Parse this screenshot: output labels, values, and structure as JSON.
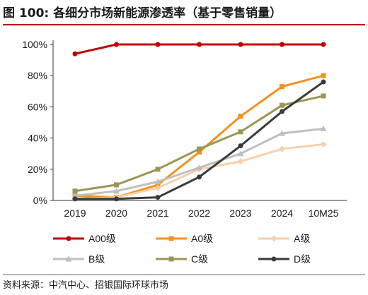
{
  "title": "图 100: 各细分市场新能源渗透率（基于零售销量）",
  "source": "资料来源：中汽中心、招银国际环球市场",
  "chart_data": {
    "type": "line",
    "categories": [
      "2019",
      "2020",
      "2021",
      "2022",
      "2023",
      "2024",
      "10M25"
    ],
    "ylim": [
      0,
      100
    ],
    "yticks": [
      0,
      20,
      40,
      60,
      80,
      100
    ],
    "ytick_labels": [
      "0%",
      "20%",
      "40%",
      "60%",
      "80%",
      "100%"
    ],
    "y_unit": "%",
    "grid": false,
    "legend_position": "bottom",
    "series": [
      {
        "name": "A00级",
        "color": "#c00000",
        "marker": "circle",
        "values": [
          94,
          100,
          100,
          100,
          100,
          100,
          100
        ]
      },
      {
        "name": "A0级",
        "color": "#f7901e",
        "marker": "square",
        "values": [
          3,
          2,
          10,
          31,
          54,
          73,
          80
        ]
      },
      {
        "name": "A级",
        "color": "#f9cfac",
        "marker": "diamond",
        "values": [
          1,
          2,
          8,
          20,
          25,
          33,
          36
        ]
      },
      {
        "name": "B级",
        "color": "#bfbfbf",
        "marker": "triangle",
        "values": [
          3,
          6,
          12,
          21,
          30,
          43,
          46
        ]
      },
      {
        "name": "C级",
        "color": "#9c9655",
        "marker": "square",
        "values": [
          6,
          10,
          20,
          33,
          44,
          61,
          67
        ]
      },
      {
        "name": "D级",
        "color": "#3a3a3a",
        "marker": "circle",
        "values": [
          1,
          1,
          2,
          15,
          35,
          57,
          76
        ]
      }
    ]
  }
}
